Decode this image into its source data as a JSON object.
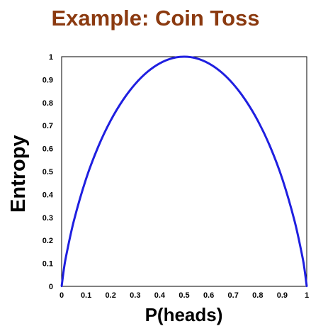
{
  "title": "Example: Coin Toss",
  "chart_data": {
    "type": "line",
    "xlabel": "P(heads)",
    "ylabel": "Entropy",
    "xlim": [
      0,
      1
    ],
    "ylim": [
      0,
      1
    ],
    "x_ticks": [
      "0",
      "0.1",
      "0.2",
      "0.3",
      "0.4",
      "0.5",
      "0.6",
      "0.7",
      "0.8",
      "0.9",
      "1"
    ],
    "y_ticks": [
      "0",
      "0.1",
      "0.2",
      "0.3",
      "0.4",
      "0.5",
      "0.6",
      "0.7",
      "0.8",
      "0.9",
      "1"
    ],
    "grid": false,
    "series": [
      {
        "color": "#1f1fe0",
        "x": [
          0,
          0.01,
          0.02,
          0.05,
          0.1,
          0.15,
          0.2,
          0.25,
          0.3,
          0.35,
          0.4,
          0.45,
          0.5,
          0.55,
          0.6,
          0.65,
          0.7,
          0.75,
          0.8,
          0.85,
          0.9,
          0.95,
          0.98,
          0.99,
          1
        ],
        "values": [
          0,
          0.081,
          0.141,
          0.286,
          0.469,
          0.61,
          0.722,
          0.811,
          0.881,
          0.934,
          0.971,
          0.993,
          1,
          0.993,
          0.971,
          0.934,
          0.881,
          0.811,
          0.722,
          0.61,
          0.469,
          0.286,
          0.141,
          0.081,
          0
        ]
      }
    ]
  }
}
